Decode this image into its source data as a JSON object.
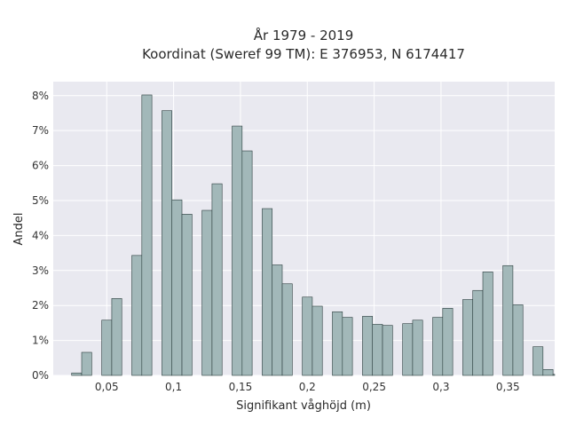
{
  "chart_data": {
    "type": "bar",
    "title_lines": [
      "År 1979 - 2019",
      "Koordinat (Sweref 99 TM): E 376953, N 6174417"
    ],
    "xlabel": "Signifikant våghöjd (m)",
    "ylabel": "Andel",
    "xlim": [
      0.01,
      0.385
    ],
    "ylim": [
      0,
      8.4
    ],
    "bin_width": 0.0075,
    "x_ticks": [
      0.05,
      0.1,
      0.15,
      0.2,
      0.25,
      0.3,
      0.35
    ],
    "x_tick_labels": [
      "0,05",
      "0,1",
      "0,15",
      "0,2",
      "0,25",
      "0,3",
      "0,35"
    ],
    "y_ticks": [
      0,
      1,
      2,
      3,
      4,
      5,
      6,
      7,
      8
    ],
    "y_tick_labels": [
      "0%",
      "1%",
      "2%",
      "3%",
      "4%",
      "5%",
      "6%",
      "7%",
      "8%"
    ],
    "grid": true,
    "colors": {
      "bar_fill": "#a2b8b9",
      "bar_edge": "#2c3e3e",
      "plot_bg": "#e9e9f0",
      "grid": "#ffffff"
    },
    "bins": [
      {
        "x": 0.0275,
        "value": 0.07
      },
      {
        "x": 0.035,
        "value": 0.66
      },
      {
        "x": 0.05,
        "value": 1.58
      },
      {
        "x": 0.0575,
        "value": 2.2
      },
      {
        "x": 0.0725,
        "value": 3.43
      },
      {
        "x": 0.08,
        "value": 8.02
      },
      {
        "x": 0.095,
        "value": 7.57
      },
      {
        "x": 0.1025,
        "value": 5.02
      },
      {
        "x": 0.11,
        "value": 4.61
      },
      {
        "x": 0.125,
        "value": 4.72
      },
      {
        "x": 0.1325,
        "value": 5.48
      },
      {
        "x": 0.1475,
        "value": 7.13
      },
      {
        "x": 0.155,
        "value": 6.42
      },
      {
        "x": 0.17,
        "value": 4.77
      },
      {
        "x": 0.1775,
        "value": 3.16
      },
      {
        "x": 0.185,
        "value": 2.62
      },
      {
        "x": 0.2,
        "value": 2.24
      },
      {
        "x": 0.2075,
        "value": 1.98
      },
      {
        "x": 0.2225,
        "value": 1.82
      },
      {
        "x": 0.23,
        "value": 1.66
      },
      {
        "x": 0.245,
        "value": 1.69
      },
      {
        "x": 0.2525,
        "value": 1.46
      },
      {
        "x": 0.26,
        "value": 1.43
      },
      {
        "x": 0.275,
        "value": 1.48
      },
      {
        "x": 0.2825,
        "value": 1.58
      },
      {
        "x": 0.2975,
        "value": 1.66
      },
      {
        "x": 0.305,
        "value": 1.92
      },
      {
        "x": 0.32,
        "value": 2.17
      },
      {
        "x": 0.3275,
        "value": 2.43
      },
      {
        "x": 0.335,
        "value": 2.96
      },
      {
        "x": 0.35,
        "value": 3.14
      },
      {
        "x": 0.3575,
        "value": 2.02
      },
      {
        "x": 0.3725,
        "value": 0.82
      },
      {
        "x": 0.38,
        "value": 0.17
      },
      {
        "x": 0.3875,
        "value": 0.03
      }
    ]
  }
}
